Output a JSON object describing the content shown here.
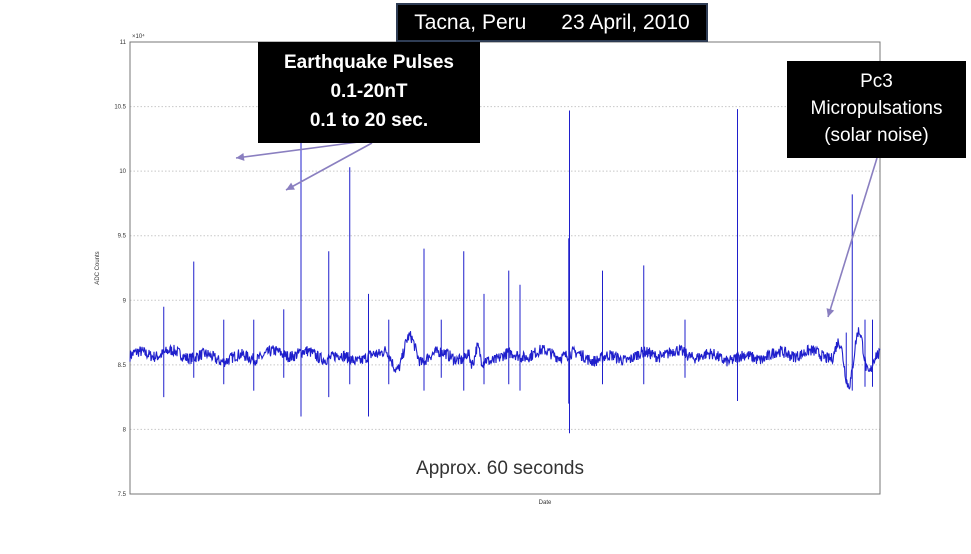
{
  "chart_data": {
    "type": "line",
    "title": "",
    "xlabel": "Date",
    "ylabel": "ADC Counts",
    "y_multiplier": "×10⁴",
    "ylim": [
      7.5,
      11
    ],
    "yticks": [
      "11",
      "10.5",
      "10",
      "9.5",
      "9",
      "8.5",
      "8",
      "7.5"
    ],
    "grid": true,
    "series": [
      {
        "color": "#1f1fcc",
        "baseline": 8.57,
        "pulses": [
          {
            "x": 0.045,
            "high": 8.95,
            "low": 8.25
          },
          {
            "x": 0.085,
            "high": 9.3,
            "low": 8.4
          },
          {
            "x": 0.125,
            "high": 8.85,
            "low": 8.35
          },
          {
            "x": 0.165,
            "high": 8.85,
            "low": 8.3
          },
          {
            "x": 0.205,
            "high": 8.93,
            "low": 8.4
          },
          {
            "x": 0.228,
            "high": 10.62,
            "low": 8.1
          },
          {
            "x": 0.265,
            "high": 9.38,
            "low": 8.25
          },
          {
            "x": 0.293,
            "high": 10.03,
            "low": 8.35
          },
          {
            "x": 0.318,
            "high": 9.05,
            "low": 8.1
          },
          {
            "x": 0.345,
            "high": 8.85,
            "low": 8.35
          },
          {
            "x": 0.392,
            "high": 9.4,
            "low": 8.3
          },
          {
            "x": 0.415,
            "high": 8.85,
            "low": 8.4
          },
          {
            "x": 0.445,
            "high": 9.38,
            "low": 8.3
          },
          {
            "x": 0.472,
            "high": 9.05,
            "low": 8.35
          },
          {
            "x": 0.505,
            "high": 9.23,
            "low": 8.35
          },
          {
            "x": 0.52,
            "high": 9.12,
            "low": 8.3
          },
          {
            "x": 0.585,
            "high": 9.48,
            "low": 8.2
          },
          {
            "x": 0.586,
            "high": 10.47,
            "low": 7.97
          },
          {
            "x": 0.63,
            "high": 9.23,
            "low": 8.35
          },
          {
            "x": 0.685,
            "high": 9.27,
            "low": 8.35
          },
          {
            "x": 0.74,
            "high": 8.85,
            "low": 8.4
          },
          {
            "x": 0.81,
            "high": 10.48,
            "low": 8.22
          },
          {
            "x": 0.99,
            "high": 8.85,
            "low": 8.33
          },
          {
            "x": 0.955,
            "high": 8.75,
            "low": 8.35
          },
          {
            "x": 0.963,
            "high": 9.82,
            "low": 8.3
          },
          {
            "x": 0.98,
            "high": 8.85,
            "low": 8.33
          }
        ],
        "oscillations": [
          {
            "start": 0.33,
            "end": 0.4,
            "amp": 0.12
          },
          {
            "start": 0.445,
            "end": 0.475,
            "amp": 0.07
          },
          {
            "start": 0.935,
            "end": 0.995,
            "amp": 0.25
          }
        ]
      }
    ],
    "annotations": {
      "title_box": "Tacna, Peru      23 April, 2010",
      "earthquake": [
        "Earthquake Pulses",
        "0.1-20nT",
        "0.1 to 20 sec."
      ],
      "pc3": [
        "Pc3",
        "Micropulsations",
        "(solar noise)"
      ],
      "duration_note": "Approx. 60 seconds"
    },
    "annotation_color": "#8a7fc0"
  }
}
